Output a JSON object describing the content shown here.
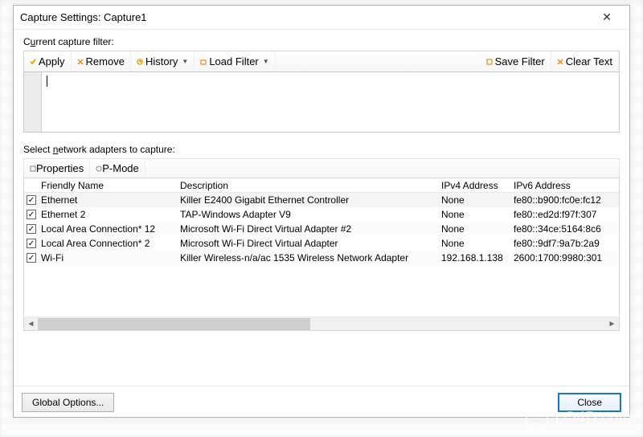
{
  "window": {
    "title": "Capture Settings: Capture1"
  },
  "filter": {
    "label_pre": "C",
    "label_accel": "u",
    "label_post": "rrent capture filter:",
    "value": "",
    "toolbar": {
      "apply": "Apply",
      "remove": "Remove",
      "history": "History",
      "load": "Load Filter",
      "save": "Save Filter",
      "clear": "Clear Text"
    },
    "icon_colors": {
      "apply": "#f7a500",
      "remove": "#f38b1c",
      "history": "#f7a500",
      "load": "#f38b1c",
      "save": "#f38b1c",
      "clear": "#f38b1c"
    }
  },
  "adapters": {
    "label_pre": "Select ",
    "label_accel": "n",
    "label_post": "etwork adapters to capture:",
    "toolbar": {
      "properties": "Properties",
      "pmode": "P-Mode"
    },
    "columns": {
      "name": "Friendly Name",
      "desc": "Description",
      "ipv4": "IPv4 Address",
      "ipv6": "IPv6 Address"
    },
    "rows": [
      {
        "checked": true,
        "name": "Ethernet",
        "desc": "Killer E2400 Gigabit Ethernet Controller",
        "ipv4": "None",
        "ipv6": "fe80::b900:fc0e:fc12"
      },
      {
        "checked": true,
        "name": "Ethernet 2",
        "desc": "TAP-Windows Adapter V9",
        "ipv4": "None",
        "ipv6": "fe80::ed2d:f97f:307"
      },
      {
        "checked": true,
        "name": "Local Area Connection* 12",
        "desc": "Microsoft Wi-Fi Direct Virtual Adapter #2",
        "ipv4": "None",
        "ipv6": "fe80::34ce:5164:8c6"
      },
      {
        "checked": true,
        "name": "Local Area Connection* 2",
        "desc": "Microsoft Wi-Fi Direct Virtual Adapter",
        "ipv4": "None",
        "ipv6": "fe80::9df7:9a7b:2a9"
      },
      {
        "checked": true,
        "name": "Wi-Fi",
        "desc": "Killer Wireless-n/a/ac 1535 Wireless Network Adapter",
        "ipv4": "192.168.1.138",
        "ipv6": "2600:1700:9980:301"
      }
    ]
  },
  "buttons": {
    "global": "Global Options...",
    "close": "Close"
  },
  "watermark": "LO4D.com"
}
